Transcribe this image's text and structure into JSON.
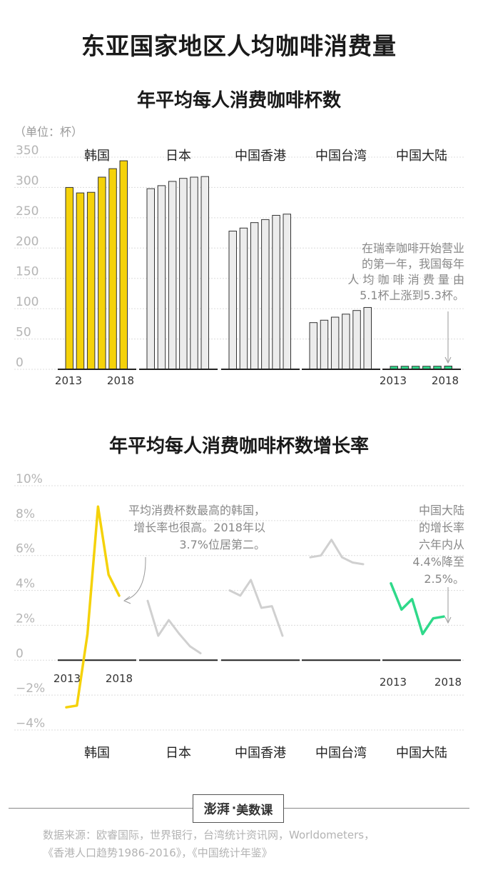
{
  "title": "东亚国家地区人均咖啡消费量",
  "brand": {
    "logo": "澎湃",
    "dot": "·",
    "name": "美数课"
  },
  "source": {
    "line1": "数据来源：欧睿国际，世界银行，台湾统计资讯网，Worldometers，",
    "line2": "《香港人口趋势1986-2016》，《中国统计年鉴》"
  },
  "colors": {
    "highlight": "#f5d20a",
    "grey_fill": "#ececec",
    "grey_line": "#d0d0d0",
    "green": "#2fd98a",
    "axis": "#222222",
    "grid": "#dcdcdc"
  },
  "chart_data": [
    {
      "type": "bar",
      "title": "年平均每人消费咖啡杯数",
      "unit_label": "（单位：杯）",
      "ylim": [
        0,
        350
      ],
      "yticks": [
        "0",
        "50",
        "100",
        "150",
        "200",
        "250",
        "300",
        "350"
      ],
      "year_labels": [
        "2013",
        "2018"
      ],
      "annotation": [
        "在瑞幸咖啡开始营业",
        "的第一年，我国每年",
        "人 均 咖 啡 消 费 量 由",
        "5.1杯上涨到5.3杯。"
      ],
      "panels": [
        {
          "name": "韩国",
          "style": "highlight",
          "values": [
            300,
            291,
            292,
            317,
            331,
            344
          ]
        },
        {
          "name": "日本",
          "style": "grey",
          "values": [
            298,
            303,
            310,
            315,
            317,
            318
          ]
        },
        {
          "name": "中国香港",
          "style": "grey",
          "values": [
            228,
            233,
            242,
            247,
            254,
            256
          ]
        },
        {
          "name": "中国台湾",
          "style": "grey",
          "values": [
            77,
            81,
            86,
            91,
            97,
            102
          ]
        },
        {
          "name": "中国大陆",
          "style": "green",
          "values": [
            4.9,
            5.0,
            5.0,
            5.0,
            5.1,
            5.3
          ]
        }
      ]
    },
    {
      "type": "line",
      "title": "年平均每人消费咖啡杯数增长率",
      "ylim": [
        -4,
        10
      ],
      "yticks": [
        "−4%",
        "−2%",
        "0",
        "2%",
        "4%",
        "6%",
        "8%",
        "10%"
      ],
      "year_labels": [
        "2013",
        "2018"
      ],
      "annotation_korea": [
        "平均消费杯数最高的韩国，",
        "增长率也很高。2018年以",
        "3.7%位居第二。"
      ],
      "annotation_china": [
        "中国大陆",
        "的增长率",
        "六年内从",
        "4.4%降至",
        "2.5%。"
      ],
      "panels": [
        {
          "name": "韩国",
          "style": "highlight",
          "values": [
            -2.7,
            -2.6,
            1.5,
            8.8,
            4.9,
            3.7
          ]
        },
        {
          "name": "日本",
          "style": "grey",
          "values": [
            3.4,
            1.4,
            2.3,
            1.5,
            0.8,
            0.4
          ]
        },
        {
          "name": "中国香港",
          "style": "grey",
          "values": [
            4.0,
            3.7,
            4.6,
            3.0,
            3.1,
            1.4
          ]
        },
        {
          "name": "中国台湾",
          "style": "grey",
          "values": [
            5.9,
            6.0,
            6.9,
            5.9,
            5.6,
            5.5
          ]
        },
        {
          "name": "中国大陆",
          "style": "green",
          "values": [
            4.4,
            2.9,
            3.5,
            1.5,
            2.4,
            2.5
          ]
        }
      ]
    }
  ]
}
